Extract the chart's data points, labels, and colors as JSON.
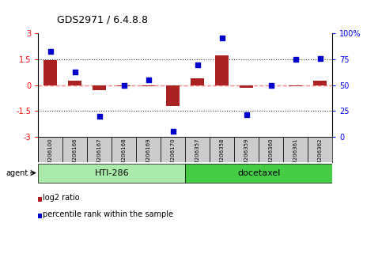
{
  "title": "GDS2971 / 6.4.8.8",
  "samples": [
    "GSM206100",
    "GSM206166",
    "GSM206167",
    "GSM206168",
    "GSM206169",
    "GSM206170",
    "GSM206357",
    "GSM206358",
    "GSM206359",
    "GSM206360",
    "GSM206361",
    "GSM206362"
  ],
  "log2_ratio": [
    1.45,
    0.25,
    -0.28,
    -0.05,
    -0.05,
    -1.22,
    0.38,
    1.72,
    -0.15,
    -0.02,
    -0.05,
    0.25
  ],
  "percentile_rank": [
    83,
    63,
    20,
    50,
    55,
    5,
    70,
    96,
    21,
    50,
    75,
    76
  ],
  "agents": [
    {
      "label": "HTI-286",
      "start": 0,
      "end": 5,
      "color": "#AAEAAA"
    },
    {
      "label": "docetaxel",
      "start": 5,
      "end": 11,
      "color": "#44CC44"
    }
  ],
  "ylim_left": [
    -3,
    3
  ],
  "ylim_right": [
    0,
    100
  ],
  "yticks_left": [
    -3,
    -1.5,
    0,
    1.5,
    3
  ],
  "yticks_right": [
    0,
    25,
    50,
    75,
    100
  ],
  "bar_color": "#AA2222",
  "dot_color": "#0000CC",
  "zero_line_color": "#FF8888",
  "dot_line_color": "#333333",
  "bg_table": "#CCCCCC",
  "legend_items": [
    {
      "label": "log2 ratio",
      "color": "#AA2222"
    },
    {
      "label": "percentile rank within the sample",
      "color": "#0000CC"
    }
  ],
  "agent_label": "agent",
  "figsize": [
    4.83,
    3.54
  ],
  "dpi": 100
}
